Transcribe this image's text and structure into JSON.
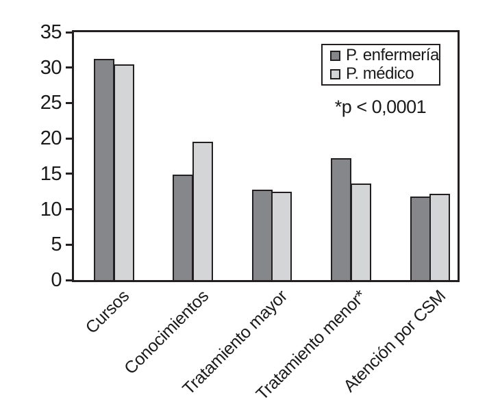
{
  "chart_data": {
    "type": "bar",
    "categories": [
      "Cursos",
      "Conocimientos",
      "Tratamiento mayor",
      "Tratamiento menor*",
      "Atención por CSM"
    ],
    "series": [
      {
        "name": "P. enfermería",
        "color": "#85878a",
        "values": [
          31.2,
          14.9,
          12.8,
          17.2,
          11.8
        ]
      },
      {
        "name": "P. médico",
        "color": "#d4d5d7",
        "values": [
          30.5,
          19.5,
          12.5,
          13.6,
          12.2
        ]
      }
    ],
    "title": "",
    "xlabel": "",
    "ylabel": "",
    "ylim": [
      0,
      35
    ],
    "ytick_step": 5,
    "yticks": [
      "0",
      "5",
      "10",
      "15",
      "20",
      "25",
      "30",
      "35"
    ],
    "grid": false,
    "legend_position": "top-right",
    "annotation": "*p < 0,0001",
    "axis_color": "#231f20",
    "background": "#ffffff"
  }
}
